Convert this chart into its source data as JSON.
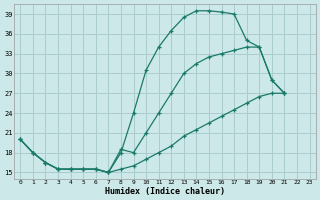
{
  "xlabel": "Humidex (Indice chaleur)",
  "ylabel": "",
  "bg_color": "#cce8e8",
  "grid_color": "#aacccc",
  "line_color": "#1a7a6a",
  "xlim": [
    -0.5,
    23.5
  ],
  "ylim": [
    14,
    40.5
  ],
  "yticks": [
    15,
    18,
    21,
    24,
    27,
    30,
    33,
    36,
    39
  ],
  "xticks": [
    0,
    1,
    2,
    3,
    4,
    5,
    6,
    7,
    8,
    9,
    10,
    11,
    12,
    13,
    14,
    15,
    16,
    17,
    18,
    19,
    20,
    21,
    22,
    23
  ],
  "line1_x": [
    0,
    1,
    2,
    3,
    4,
    5,
    6,
    7,
    8,
    9,
    10,
    11,
    12,
    13,
    14,
    15,
    16,
    17,
    18,
    19,
    20,
    21
  ],
  "line1_y": [
    20,
    18,
    16.5,
    15.5,
    15.5,
    15.5,
    15.5,
    15,
    18,
    24,
    30.5,
    34,
    36.5,
    38.5,
    39.5,
    39.5,
    39.3,
    39,
    35,
    34,
    29,
    27
  ],
  "line2_x": [
    0,
    1,
    2,
    3,
    4,
    5,
    6,
    7,
    8,
    9,
    10,
    11,
    12,
    13,
    14,
    15,
    16,
    17,
    18,
    19,
    20,
    21
  ],
  "line2_y": [
    20,
    18,
    16.5,
    15.5,
    15.5,
    15.5,
    15.5,
    15,
    18.5,
    18,
    21,
    24,
    27,
    30,
    31.5,
    32.5,
    33,
    33.5,
    34,
    34,
    29,
    27
  ],
  "line3_x": [
    0,
    1,
    2,
    3,
    4,
    5,
    6,
    7,
    8,
    9,
    10,
    11,
    12,
    13,
    14,
    15,
    16,
    17,
    18,
    19,
    20,
    21
  ],
  "line3_y": [
    20,
    18,
    16.5,
    15.5,
    15.5,
    15.5,
    15.5,
    15,
    15.5,
    16,
    17,
    18,
    19,
    20.5,
    21.5,
    22.5,
    23.5,
    24.5,
    25.5,
    26.5,
    27,
    27
  ]
}
